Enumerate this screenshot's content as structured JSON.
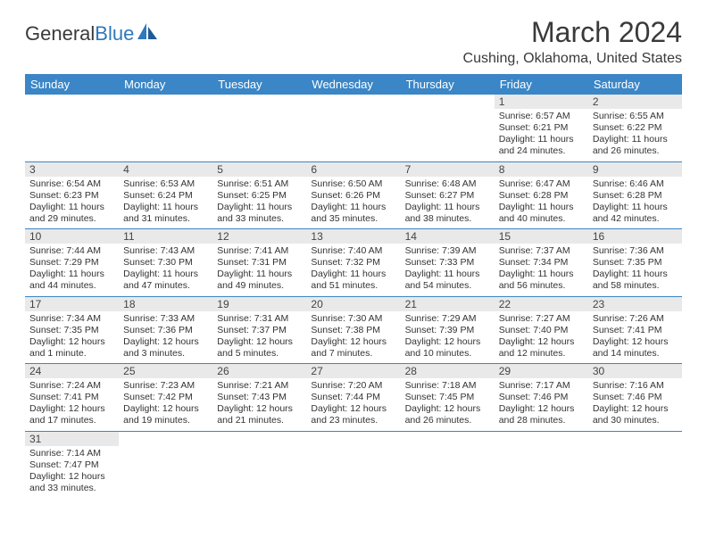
{
  "logo": {
    "word1": "General",
    "word2": "Blue"
  },
  "title": "March 2024",
  "subtitle": "Cushing, Oklahoma, United States",
  "colors": {
    "header_bg": "#3b86c6",
    "header_text": "#ffffff",
    "daynum_bg": "#e9e9e9",
    "text": "#333333",
    "rule": "#3b86c6"
  },
  "typography": {
    "title_fontsize": 32,
    "subtitle_fontsize": 16,
    "header_fontsize": 13,
    "daynum_fontsize": 12,
    "body_fontsize": 10.5
  },
  "days_of_week": [
    "Sunday",
    "Monday",
    "Tuesday",
    "Wednesday",
    "Thursday",
    "Friday",
    "Saturday"
  ],
  "weeks": [
    [
      null,
      null,
      null,
      null,
      null,
      {
        "n": "1",
        "sunrise": "6:57 AM",
        "sunset": "6:21 PM",
        "daylight": "11 hours and 24 minutes."
      },
      {
        "n": "2",
        "sunrise": "6:55 AM",
        "sunset": "6:22 PM",
        "daylight": "11 hours and 26 minutes."
      }
    ],
    [
      {
        "n": "3",
        "sunrise": "6:54 AM",
        "sunset": "6:23 PM",
        "daylight": "11 hours and 29 minutes."
      },
      {
        "n": "4",
        "sunrise": "6:53 AM",
        "sunset": "6:24 PM",
        "daylight": "11 hours and 31 minutes."
      },
      {
        "n": "5",
        "sunrise": "6:51 AM",
        "sunset": "6:25 PM",
        "daylight": "11 hours and 33 minutes."
      },
      {
        "n": "6",
        "sunrise": "6:50 AM",
        "sunset": "6:26 PM",
        "daylight": "11 hours and 35 minutes."
      },
      {
        "n": "7",
        "sunrise": "6:48 AM",
        "sunset": "6:27 PM",
        "daylight": "11 hours and 38 minutes."
      },
      {
        "n": "8",
        "sunrise": "6:47 AM",
        "sunset": "6:28 PM",
        "daylight": "11 hours and 40 minutes."
      },
      {
        "n": "9",
        "sunrise": "6:46 AM",
        "sunset": "6:28 PM",
        "daylight": "11 hours and 42 minutes."
      }
    ],
    [
      {
        "n": "10",
        "sunrise": "7:44 AM",
        "sunset": "7:29 PM",
        "daylight": "11 hours and 44 minutes."
      },
      {
        "n": "11",
        "sunrise": "7:43 AM",
        "sunset": "7:30 PM",
        "daylight": "11 hours and 47 minutes."
      },
      {
        "n": "12",
        "sunrise": "7:41 AM",
        "sunset": "7:31 PM",
        "daylight": "11 hours and 49 minutes."
      },
      {
        "n": "13",
        "sunrise": "7:40 AM",
        "sunset": "7:32 PM",
        "daylight": "11 hours and 51 minutes."
      },
      {
        "n": "14",
        "sunrise": "7:39 AM",
        "sunset": "7:33 PM",
        "daylight": "11 hours and 54 minutes."
      },
      {
        "n": "15",
        "sunrise": "7:37 AM",
        "sunset": "7:34 PM",
        "daylight": "11 hours and 56 minutes."
      },
      {
        "n": "16",
        "sunrise": "7:36 AM",
        "sunset": "7:35 PM",
        "daylight": "11 hours and 58 minutes."
      }
    ],
    [
      {
        "n": "17",
        "sunrise": "7:34 AM",
        "sunset": "7:35 PM",
        "daylight": "12 hours and 1 minute."
      },
      {
        "n": "18",
        "sunrise": "7:33 AM",
        "sunset": "7:36 PM",
        "daylight": "12 hours and 3 minutes."
      },
      {
        "n": "19",
        "sunrise": "7:31 AM",
        "sunset": "7:37 PM",
        "daylight": "12 hours and 5 minutes."
      },
      {
        "n": "20",
        "sunrise": "7:30 AM",
        "sunset": "7:38 PM",
        "daylight": "12 hours and 7 minutes."
      },
      {
        "n": "21",
        "sunrise": "7:29 AM",
        "sunset": "7:39 PM",
        "daylight": "12 hours and 10 minutes."
      },
      {
        "n": "22",
        "sunrise": "7:27 AM",
        "sunset": "7:40 PM",
        "daylight": "12 hours and 12 minutes."
      },
      {
        "n": "23",
        "sunrise": "7:26 AM",
        "sunset": "7:41 PM",
        "daylight": "12 hours and 14 minutes."
      }
    ],
    [
      {
        "n": "24",
        "sunrise": "7:24 AM",
        "sunset": "7:41 PM",
        "daylight": "12 hours and 17 minutes."
      },
      {
        "n": "25",
        "sunrise": "7:23 AM",
        "sunset": "7:42 PM",
        "daylight": "12 hours and 19 minutes."
      },
      {
        "n": "26",
        "sunrise": "7:21 AM",
        "sunset": "7:43 PM",
        "daylight": "12 hours and 21 minutes."
      },
      {
        "n": "27",
        "sunrise": "7:20 AM",
        "sunset": "7:44 PM",
        "daylight": "12 hours and 23 minutes."
      },
      {
        "n": "28",
        "sunrise": "7:18 AM",
        "sunset": "7:45 PM",
        "daylight": "12 hours and 26 minutes."
      },
      {
        "n": "29",
        "sunrise": "7:17 AM",
        "sunset": "7:46 PM",
        "daylight": "12 hours and 28 minutes."
      },
      {
        "n": "30",
        "sunrise": "7:16 AM",
        "sunset": "7:46 PM",
        "daylight": "12 hours and 30 minutes."
      }
    ],
    [
      {
        "n": "31",
        "sunrise": "7:14 AM",
        "sunset": "7:47 PM",
        "daylight": "12 hours and 33 minutes."
      },
      null,
      null,
      null,
      null,
      null,
      null
    ]
  ]
}
